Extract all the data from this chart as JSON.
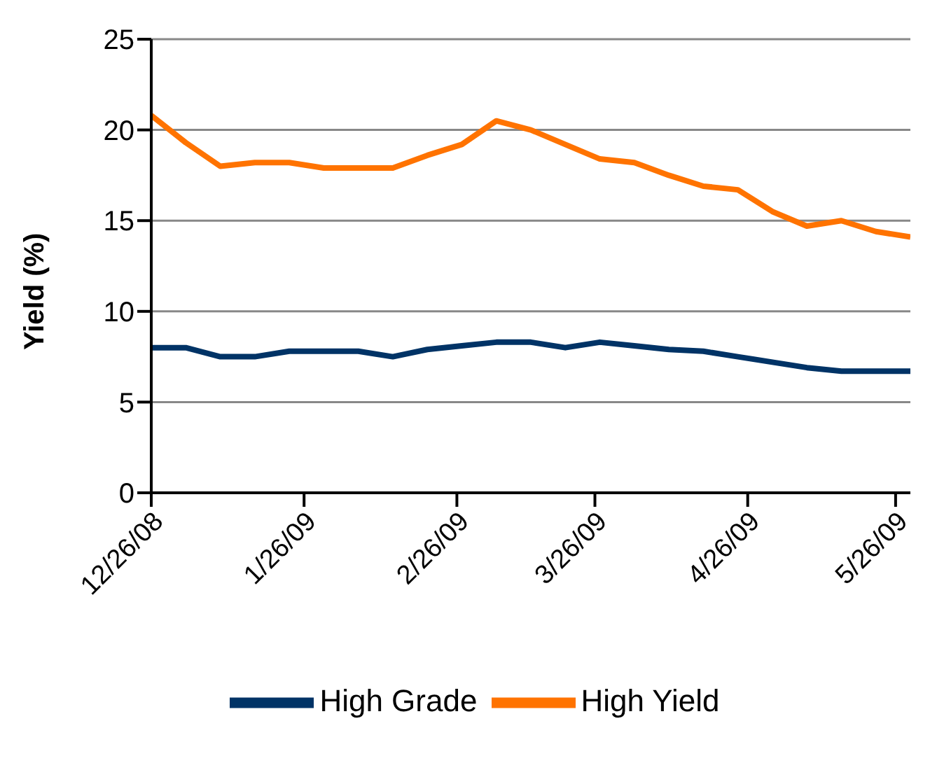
{
  "chart_data": {
    "type": "line",
    "ylabel": "Yield (%)",
    "x": [
      "2008-12-26",
      "2009-01-02",
      "2009-01-09",
      "2009-01-16",
      "2009-01-23",
      "2009-01-30",
      "2009-02-06",
      "2009-02-13",
      "2009-02-20",
      "2009-02-27",
      "2009-03-06",
      "2009-03-13",
      "2009-03-20",
      "2009-03-27",
      "2009-04-03",
      "2009-04-10",
      "2009-04-17",
      "2009-04-24",
      "2009-05-01",
      "2009-05-08",
      "2009-05-15",
      "2009-05-22",
      "2009-05-29"
    ],
    "series": [
      {
        "name": "High Grade",
        "color": "#003366",
        "values": [
          8.0,
          8.0,
          7.5,
          7.5,
          7.8,
          7.8,
          7.8,
          7.5,
          7.9,
          8.1,
          8.3,
          8.3,
          8.0,
          8.3,
          8.1,
          7.9,
          7.8,
          7.5,
          7.2,
          6.9,
          6.7,
          6.7,
          6.7
        ]
      },
      {
        "name": "High Yield",
        "color": "#ff7300",
        "values": [
          20.8,
          19.3,
          18.0,
          18.2,
          18.2,
          17.9,
          17.9,
          17.9,
          18.6,
          19.2,
          20.5,
          20.0,
          19.2,
          18.4,
          18.2,
          17.5,
          16.9,
          16.7,
          15.5,
          14.7,
          15.0,
          14.4,
          14.1
        ]
      }
    ],
    "xlim": [
      "2008-12-26",
      "2009-05-29"
    ],
    "xticks": [
      {
        "value": "2008-12-26",
        "label": "12/26/08"
      },
      {
        "value": "2009-01-26",
        "label": "1/26/09"
      },
      {
        "value": "2009-02-26",
        "label": "2/26/09"
      },
      {
        "value": "2009-03-26",
        "label": "3/26/09"
      },
      {
        "value": "2009-04-26",
        "label": "4/26/09"
      },
      {
        "value": "2009-05-26",
        "label": "5/26/09"
      }
    ],
    "ylim": [
      0,
      25
    ],
    "yticks": [
      0,
      5,
      10,
      15,
      20,
      25
    ],
    "grid": "y",
    "legend": "bottom",
    "marker": "none",
    "line_style": "solid"
  }
}
